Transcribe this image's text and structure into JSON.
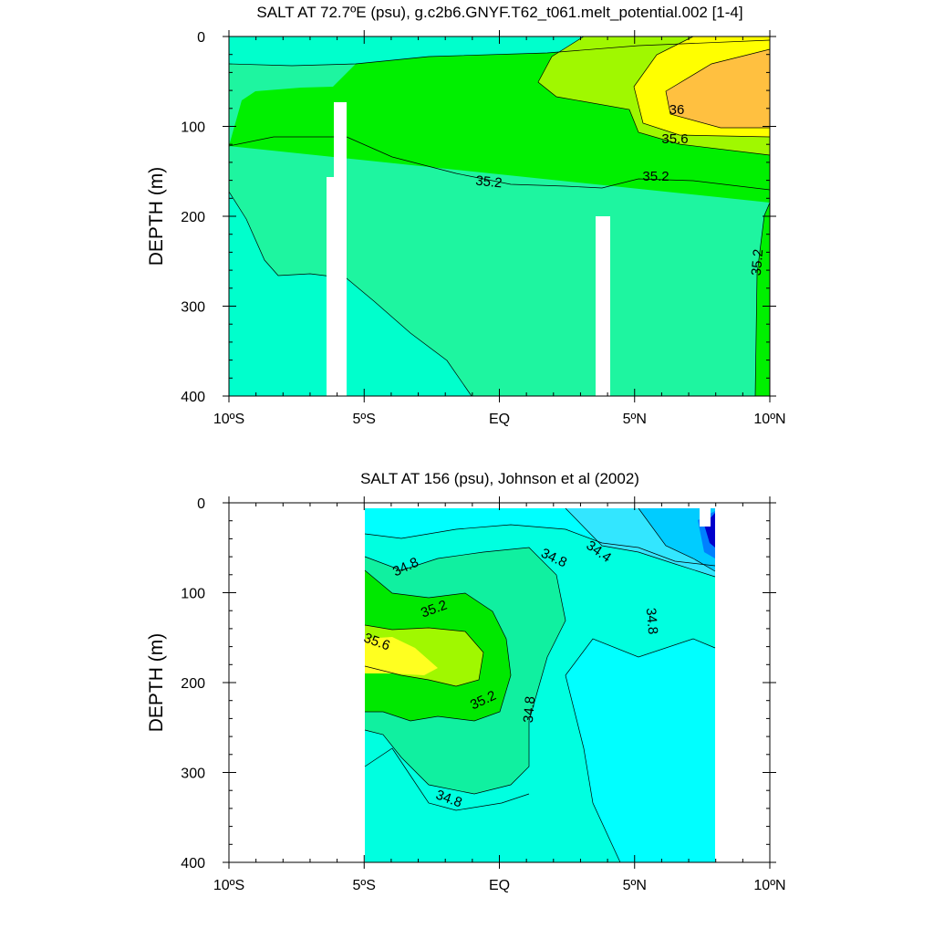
{
  "chart_data": [
    {
      "type": "heatmap",
      "title": "SALT AT  72.7ºE (psu), g.c2b6.GNYF.T62_t061.melt_potential.002 [1-4]",
      "ylabel": "DEPTH (m)",
      "xlabel": "",
      "xlim": [
        -10,
        10
      ],
      "ylim": [
        400,
        0
      ],
      "x_ticks": [
        -10,
        -5,
        0,
        5,
        10
      ],
      "x_tick_labels": [
        "10ºS",
        "5ºS",
        "EQ",
        "5ºN",
        "10ºN"
      ],
      "y_ticks": [
        0,
        100,
        200,
        300,
        400
      ],
      "y_tick_labels": [
        "0",
        "100",
        "200",
        "300",
        "400"
      ],
      "contour_labels": [
        "36",
        "35.6",
        "35.2",
        "35.2",
        "35.2"
      ],
      "colors": {
        "c348": "#00ffcc",
        "c352": "#1ef5a0",
        "c356": "#00f000",
        "c360": "#a0f800",
        "c364": "#ffff00",
        "c368": "#ffc040"
      }
    },
    {
      "type": "heatmap",
      "title": "SALT AT 156 (psu), Johnson et al (2002)",
      "ylabel": "DEPTH (m)",
      "xlabel": "",
      "xlim": [
        -10,
        10
      ],
      "ylim": [
        400,
        0
      ],
      "data_xrange": [
        -5,
        8
      ],
      "x_ticks": [
        -10,
        -5,
        0,
        5,
        10
      ],
      "x_tick_labels": [
        "10ºS",
        "5ºS",
        "EQ",
        "5ºN",
        "10ºN"
      ],
      "y_ticks": [
        0,
        100,
        200,
        300,
        400
      ],
      "y_tick_labels": [
        "0",
        "100",
        "200",
        "300",
        "400"
      ],
      "contour_labels": [
        "34.8",
        "34.8",
        "34.4",
        "34.8",
        "35.2",
        "35.6",
        "35.2",
        "34.8",
        "34.8"
      ],
      "colors": {
        "c344": "#00ffff",
        "c348": "#00ffe0",
        "c352": "#10f0a0",
        "c356": "#00e800",
        "c360": "#a0f800",
        "c364": "#ffff20",
        "low1": "#00ccff",
        "low2": "#0080ff",
        "low3": "#0000cc"
      }
    }
  ]
}
